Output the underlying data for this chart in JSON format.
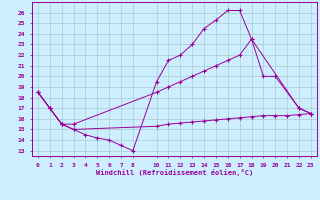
{
  "xlabel": "Windchill (Refroidissement éolien,°C)",
  "bg_color": "#cceeff",
  "line_color": "#990099",
  "grid_color": "#aacccc",
  "line1_x": [
    0,
    1,
    2,
    3,
    4,
    5,
    6,
    7,
    8,
    10,
    11,
    12,
    13,
    14,
    15,
    16,
    17,
    18,
    22,
    23
  ],
  "line1_y": [
    18.5,
    17.0,
    15.5,
    15.0,
    14.5,
    14.2,
    14.0,
    13.5,
    13.0,
    19.5,
    21.5,
    22.0,
    23.0,
    24.5,
    25.3,
    26.2,
    26.2,
    23.5,
    17.0,
    16.5
  ],
  "line2_x": [
    0,
    1,
    2,
    3,
    10,
    11,
    12,
    13,
    14,
    15,
    16,
    17,
    18,
    19,
    20,
    22,
    23
  ],
  "line2_y": [
    18.5,
    17.0,
    15.5,
    15.5,
    18.5,
    19.0,
    19.5,
    20.0,
    20.5,
    21.0,
    21.5,
    22.0,
    23.5,
    20.0,
    20.0,
    17.0,
    16.5
  ],
  "line3_x": [
    0,
    1,
    2,
    3,
    10,
    11,
    12,
    13,
    14,
    15,
    16,
    17,
    18,
    19,
    20,
    21,
    22,
    23
  ],
  "line3_y": [
    18.5,
    17.0,
    15.5,
    15.0,
    15.3,
    15.5,
    15.6,
    15.7,
    15.8,
    15.9,
    16.0,
    16.1,
    16.2,
    16.3,
    16.3,
    16.3,
    16.4,
    16.5
  ],
  "xlim": [
    -0.5,
    23.5
  ],
  "ylim": [
    12.5,
    27
  ],
  "yticks": [
    13,
    14,
    15,
    16,
    17,
    18,
    19,
    20,
    21,
    22,
    23,
    24,
    25,
    26
  ],
  "xticks": [
    0,
    1,
    2,
    3,
    4,
    5,
    6,
    7,
    8,
    10,
    11,
    12,
    13,
    14,
    15,
    16,
    17,
    18,
    19,
    20,
    21,
    22,
    23
  ]
}
